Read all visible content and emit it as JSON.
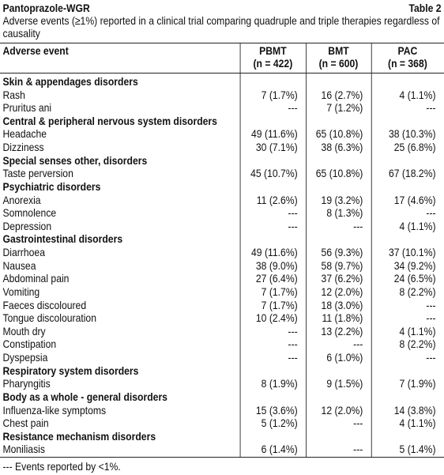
{
  "header": {
    "title": "Pantoprazole-WGR",
    "label": "Table 2",
    "subtitle": "Adverse events (≥1%) reported in a clinical trial comparing quadruple and triple therapies regardless of causality"
  },
  "table": {
    "columns": [
      {
        "name": "Adverse event"
      },
      {
        "name": "PBMT",
        "n": "(n = 422)"
      },
      {
        "name": "BMT",
        "n": "(n = 600)"
      },
      {
        "name": "PAC",
        "n": "(n = 368)"
      }
    ],
    "rows": [
      {
        "label": "Skin & appendages disorders",
        "section": true
      },
      {
        "label": "Rash",
        "cells": [
          "7 (1.7%)",
          "16 (2.7%)",
          "4 (1.1%)"
        ]
      },
      {
        "label": "Pruritus ani",
        "cells": [
          "---",
          "7 (1.2%)",
          "---"
        ]
      },
      {
        "label": "Central & peripheral nervous system disorders",
        "section": true
      },
      {
        "label": "Headache",
        "cells": [
          "49 (11.6%)",
          "65 (10.8%)",
          "38 (10.3%)"
        ]
      },
      {
        "label": "Dizziness",
        "cells": [
          "30 (7.1%)",
          "38 (6.3%)",
          "25 (6.8%)"
        ]
      },
      {
        "label": "Special senses other, disorders",
        "section": true
      },
      {
        "label": "Taste perversion",
        "cells": [
          "45 (10.7%)",
          "65 (10.8%)",
          "67 (18.2%)"
        ]
      },
      {
        "label": "Psychiatric disorders",
        "section": true
      },
      {
        "label": "Anorexia",
        "cells": [
          "11 (2.6%)",
          "19 (3.2%)",
          "17 (4.6%)"
        ]
      },
      {
        "label": "Somnolence",
        "cells": [
          "---",
          "8 (1.3%)",
          "---"
        ]
      },
      {
        "label": "Depression",
        "cells": [
          "---",
          "---",
          "4 (1.1%)"
        ]
      },
      {
        "label": "Gastrointestinal disorders",
        "section": true
      },
      {
        "label": "Diarrhoea",
        "cells": [
          "49 (11.6%)",
          "56 (9.3%)",
          "37 (10.1%)"
        ]
      },
      {
        "label": "Nausea",
        "cells": [
          "38 (9.0%)",
          "58 (9.7%)",
          "34 (9.2%)"
        ]
      },
      {
        "label": "Abdominal pain",
        "cells": [
          "27 (6.4%)",
          "37 (6.2%)",
          "24 (6.5%)"
        ]
      },
      {
        "label": "Vomiting",
        "cells": [
          "7 (1.7%)",
          "12 (2.0%)",
          "8 (2.2%)"
        ]
      },
      {
        "label": "Faeces discoloured",
        "cells": [
          "7 (1.7%)",
          "18 (3.0%)",
          "---"
        ]
      },
      {
        "label": "Tongue discolouration",
        "cells": [
          "10 (2.4%)",
          "11 (1.8%)",
          "---"
        ]
      },
      {
        "label": "Mouth dry",
        "cells": [
          "---",
          "13 (2.2%)",
          "4 (1.1%)"
        ]
      },
      {
        "label": "Constipation",
        "cells": [
          "---",
          "---",
          "8 (2.2%)"
        ]
      },
      {
        "label": "Dyspepsia",
        "cells": [
          "---",
          "6 (1.0%)",
          "---"
        ]
      },
      {
        "label": "Respiratory system disorders",
        "section": true
      },
      {
        "label": "Pharyngitis",
        "cells": [
          "8 (1.9%)",
          "9 (1.5%)",
          "7 (1.9%)"
        ]
      },
      {
        "label": "Body as a whole - general disorders",
        "section": true
      },
      {
        "label": "Influenza-like symptoms",
        "cells": [
          "15 (3.6%)",
          "12 (2.0%)",
          "14 (3.8%)"
        ]
      },
      {
        "label": "Chest pain",
        "cells": [
          "5 (1.2%)",
          "---",
          "4 (1.1%)"
        ]
      },
      {
        "label": "Resistance mechanism disorders",
        "section": true
      },
      {
        "label": "Moniliasis",
        "cells": [
          "6 (1.4%)",
          "---",
          "5 (1.4%)"
        ]
      }
    ]
  },
  "footnote": "--- Events reported by <1%."
}
